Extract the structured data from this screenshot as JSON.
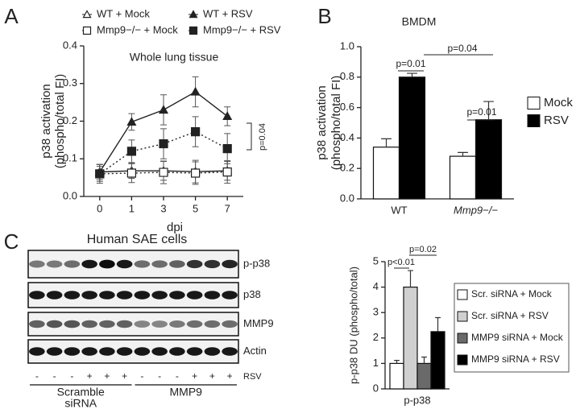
{
  "panel_labels": [
    "A",
    "B",
    "C"
  ],
  "chart_data": [
    {
      "type": "line",
      "title": "Whole lung tissue",
      "ylabel": [
        "p38 activation",
        "(phospho/total FI)"
      ],
      "xlabel": "dpi",
      "categories": [
        "0",
        "1",
        "3",
        "5",
        "7"
      ],
      "ylim": [
        0,
        0.4
      ],
      "yticks": [
        {
          "value": 0,
          "label": "0.0"
        },
        0.1,
        0.2,
        0.3,
        0.4
      ],
      "series": [
        {
          "name": "WT + Mock",
          "color": "#222222",
          "marker": "triangle",
          "filled": false,
          "dashed": false,
          "values": [
            0.065,
            0.068,
            0.068,
            0.066,
            0.068
          ],
          "errors": [
            0.02,
            0.02,
            0.025,
            0.03,
            0.025
          ]
        },
        {
          "name": "WT + RSV",
          "color": "#222222",
          "marker": "triangle",
          "filled": true,
          "dashed": false,
          "values": [
            0.065,
            0.198,
            0.23,
            0.278,
            0.213
          ],
          "errors": [
            0.02,
            0.022,
            0.04,
            0.04,
            0.025
          ]
        },
        {
          "name": "Mmp9−/− + Mock",
          "color": "#222222",
          "marker": "square",
          "filled": false,
          "dashed": true,
          "values": [
            0.06,
            0.062,
            0.064,
            0.062,
            0.065
          ],
          "errors": [
            0.02,
            0.025,
            0.03,
            0.03,
            0.03
          ]
        },
        {
          "name": "Mmp9−/− + RSV",
          "color": "#222222",
          "marker": "square",
          "filled": true,
          "dashed": true,
          "values": [
            0.06,
            0.12,
            0.14,
            0.172,
            0.127
          ],
          "errors": [
            0.025,
            0.03,
            0.04,
            0.04,
            0.04
          ]
        }
      ],
      "annotations": [
        "p=0.04"
      ]
    },
    {
      "type": "bar",
      "title": "BMDM",
      "ylabel": [
        "p38 activation",
        "(phospho/total FI)"
      ],
      "categories": [
        "WT",
        "Mmp9−/−"
      ],
      "ylim": [
        0,
        1.0
      ],
      "yticks": [
        {
          "value": 0,
          "label": "0.0"
        },
        0.2,
        0.4,
        0.6,
        0.8,
        {
          "value": 1.0,
          "label": "1.0"
        }
      ],
      "series": [
        {
          "name": "Mock",
          "color": "#ffffff",
          "values": [
            0.34,
            0.28
          ],
          "errors": [
            0.055,
            0.025
          ]
        },
        {
          "name": "RSV",
          "color": "#000000",
          "values": [
            0.8,
            0.52
          ],
          "errors": [
            0.025,
            0.12
          ]
        }
      ],
      "annotations": [
        "p=0.01",
        "p=0.04",
        "p=0.01"
      ]
    },
    {
      "type": "bar",
      "ylabel": [
        "p-p38 DU (phospho/total)"
      ],
      "categories": [
        "p-p38"
      ],
      "ylim": [
        0,
        5
      ],
      "yticks": [
        0,
        1,
        2,
        3,
        4,
        5
      ],
      "series": [
        {
          "name": "Scr. siRNA + Mock",
          "color": "#ffffff",
          "values": [
            1.0
          ],
          "errors": [
            0.12
          ]
        },
        {
          "name": "Scr. siRNA + RSV",
          "color": "#d0d0d0",
          "values": [
            4.0
          ],
          "errors": [
            0.65
          ]
        },
        {
          "name": "MMP9 siRNA + Mock",
          "color": "#6a6a6a",
          "values": [
            1.0
          ],
          "errors": [
            0.25
          ]
        },
        {
          "name": "MMP9 siRNA + RSV",
          "color": "#000000",
          "values": [
            2.25
          ],
          "errors": [
            0.55
          ]
        }
      ],
      "annotations": [
        "p<0.01",
        "p=0.02"
      ]
    }
  ],
  "blot": {
    "title": "Human SAE cells",
    "rows": [
      "p-p38",
      "p38",
      "MMP9",
      "Actin"
    ],
    "signs": [
      "-",
      "-",
      "-",
      "+",
      "+",
      "+",
      "-",
      "-",
      "-",
      "+",
      "+",
      "+"
    ],
    "treatment": "RSV",
    "groups": [
      "Scramble",
      "MMP9"
    ],
    "group_label": "siRNA"
  }
}
